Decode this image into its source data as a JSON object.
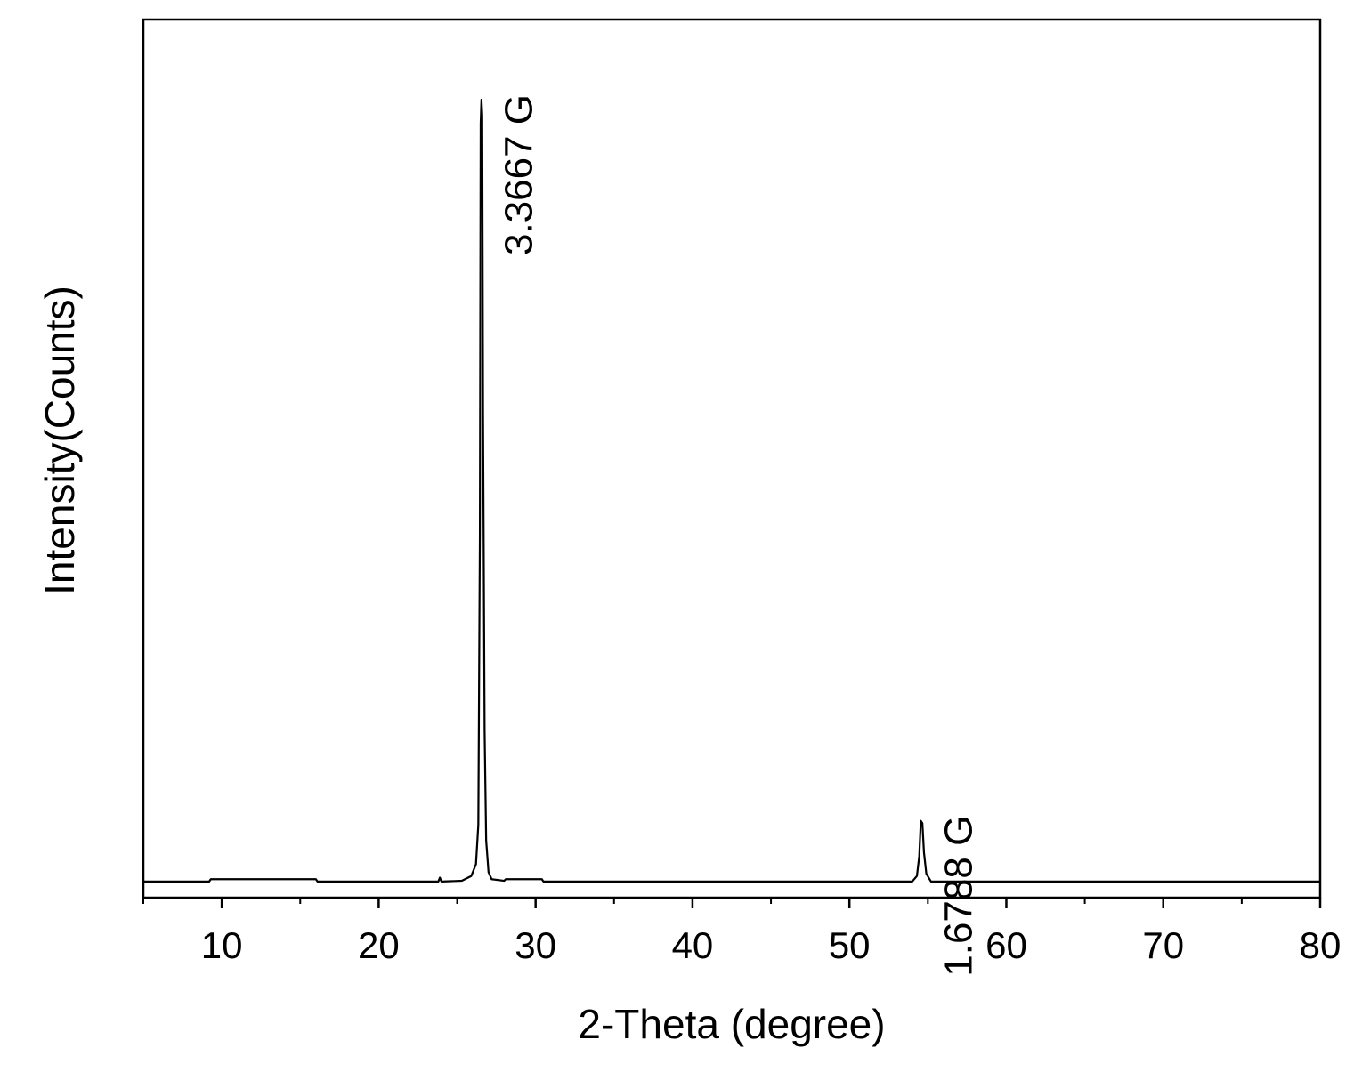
{
  "chart_data": {
    "type": "line",
    "title": "",
    "xlabel": "2-Theta (degree)",
    "ylabel": "Intensity(Counts)",
    "xlim": [
      5,
      80
    ],
    "ylim": [
      0,
      100
    ],
    "x_major_ticks": [
      10,
      20,
      30,
      40,
      50,
      60,
      70,
      80
    ],
    "x_minor_ticks": [
      5,
      15,
      25,
      35,
      45,
      55,
      65,
      75
    ],
    "y_tick_labels": [],
    "grid": false,
    "legend": "none",
    "line_color": "#000000",
    "series": [
      {
        "x": [
          5,
          9.2,
          9.3,
          16.0,
          16.1,
          23.8,
          23.9,
          24.0,
          25.3,
          25.9,
          26.2,
          26.35,
          26.45,
          26.5,
          26.55,
          26.6,
          26.65,
          26.75,
          26.85,
          27.0,
          27.2,
          28.0,
          28.1,
          30.4,
          30.5,
          54.0,
          54.3,
          54.45,
          54.55,
          54.65,
          54.75,
          54.9,
          55.2,
          80
        ],
        "y": [
          0.8,
          0.8,
          1.1,
          1.1,
          0.8,
          0.8,
          1.3,
          0.8,
          0.9,
          1.5,
          3.0,
          8.0,
          45.0,
          97.0,
          100.0,
          98.0,
          60.0,
          20.0,
          6.0,
          2.0,
          1.1,
          0.9,
          1.1,
          1.1,
          0.8,
          0.8,
          1.5,
          4.0,
          8.5,
          8.2,
          4.5,
          1.8,
          0.8,
          0.8
        ]
      }
    ],
    "annotations": [
      {
        "text": "3.3667 G",
        "x": 26.6,
        "y": 100,
        "rotation": -90
      },
      {
        "text": "1.6788 G",
        "x": 54.6,
        "y": 8.5,
        "rotation": -90
      }
    ]
  }
}
